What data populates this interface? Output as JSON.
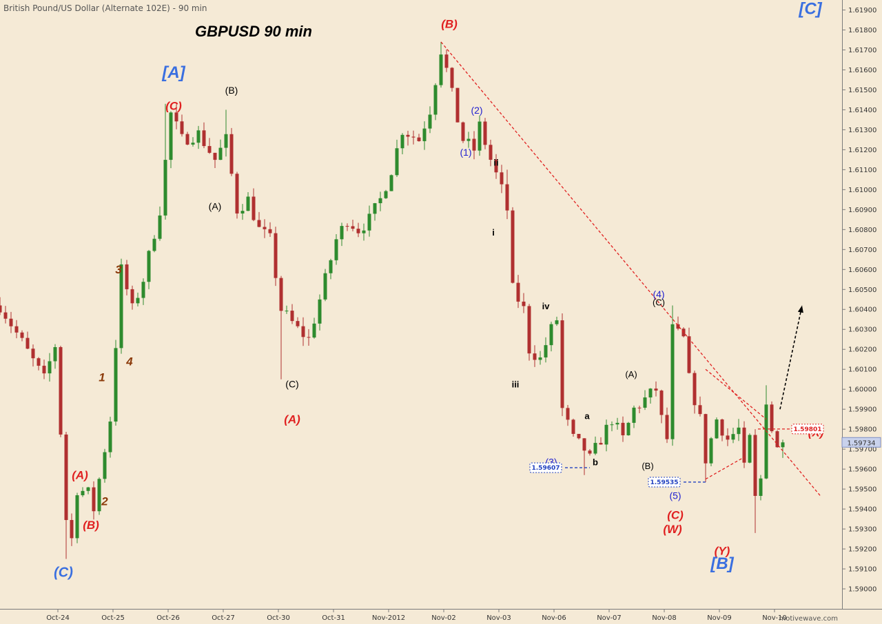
{
  "header": {
    "instrument": "British Pound/US Dollar (Alternate 102E) - 90 min",
    "title": "GBPUSD  90 min",
    "watermark": "motivewave.com"
  },
  "chart_data": {
    "type": "candlestick",
    "ylim": [
      1.589,
      1.6195
    ],
    "y_ticks": [
      {
        "value": 1.59,
        "label": "1.59000"
      },
      {
        "value": 1.591,
        "label": "1.59100"
      },
      {
        "value": 1.592,
        "label": "1.59200"
      },
      {
        "value": 1.593,
        "label": "1.59300"
      },
      {
        "value": 1.594,
        "label": "1.59400"
      },
      {
        "value": 1.595,
        "label": "1.59500"
      },
      {
        "value": 1.596,
        "label": "1.59600"
      },
      {
        "value": 1.597,
        "label": "1.59700"
      },
      {
        "value": 1.598,
        "label": "1.59800"
      },
      {
        "value": 1.599,
        "label": "1.59900"
      },
      {
        "value": 1.6,
        "label": "1.60000"
      },
      {
        "value": 1.601,
        "label": "1.60100"
      },
      {
        "value": 1.602,
        "label": "1.60200"
      },
      {
        "value": 1.603,
        "label": "1.60300"
      },
      {
        "value": 1.604,
        "label": "1.60400"
      },
      {
        "value": 1.605,
        "label": "1.60500"
      },
      {
        "value": 1.606,
        "label": "1.60600"
      },
      {
        "value": 1.607,
        "label": "1.60700"
      },
      {
        "value": 1.608,
        "label": "1.60800"
      },
      {
        "value": 1.609,
        "label": "1.60900"
      },
      {
        "value": 1.61,
        "label": "1.61000"
      },
      {
        "value": 1.611,
        "label": "1.61100"
      },
      {
        "value": 1.612,
        "label": "1.61200"
      },
      {
        "value": 1.613,
        "label": "1.61300"
      },
      {
        "value": 1.614,
        "label": "1.61400"
      },
      {
        "value": 1.615,
        "label": "1.61500"
      },
      {
        "value": 1.616,
        "label": "1.61600"
      },
      {
        "value": 1.617,
        "label": "1.61700"
      },
      {
        "value": 1.618,
        "label": "1.61800"
      },
      {
        "value": 1.619,
        "label": "1.61900"
      }
    ],
    "x_ticks": [
      {
        "t": 7.5,
        "label": "Oct-24"
      },
      {
        "t": 17.5,
        "label": "Oct-25"
      },
      {
        "t": 27.5,
        "label": "Oct-26"
      },
      {
        "t": 37.5,
        "label": "Oct-27"
      },
      {
        "t": 47.5,
        "label": "Oct-30"
      },
      {
        "t": 57.5,
        "label": "Oct-31"
      },
      {
        "t": 67.5,
        "label": "Nov-2012"
      },
      {
        "t": 77.5,
        "label": "Nov-02"
      },
      {
        "t": 87.5,
        "label": "Nov-03"
      },
      {
        "t": 97.5,
        "label": "Nov-06"
      },
      {
        "t": 107.5,
        "label": "Nov-07"
      },
      {
        "t": 117.5,
        "label": "Nov-08"
      },
      {
        "t": 127.5,
        "label": "Nov-09"
      },
      {
        "t": 137.5,
        "label": "Nov-10"
      }
    ],
    "xlim": [
      -3.0,
      147.0
    ],
    "up_color": "#2e8b2e",
    "down_color": "#b03030",
    "price_path": [
      [
        -3,
        1.6042
      ],
      [
        5,
        1.6005
      ],
      [
        7,
        1.6022
      ],
      [
        9,
        1.5935
      ],
      [
        10,
        1.5925
      ],
      [
        11,
        1.595
      ],
      [
        13,
        1.5948
      ],
      [
        14,
        1.594
      ],
      [
        17,
        1.5985
      ],
      [
        19,
        1.606
      ],
      [
        21,
        1.604
      ],
      [
        23,
        1.6055
      ],
      [
        26,
        1.609
      ],
      [
        28,
        1.6138
      ],
      [
        30,
        1.6125
      ],
      [
        33,
        1.6128
      ],
      [
        36,
        1.6115
      ],
      [
        38,
        1.6125
      ],
      [
        40,
        1.609
      ],
      [
        42,
        1.6095
      ],
      [
        44,
        1.608
      ],
      [
        46,
        1.6075
      ],
      [
        48,
        1.604
      ],
      [
        51,
        1.603
      ],
      [
        53,
        1.6025
      ],
      [
        56,
        1.6055
      ],
      [
        58,
        1.6075
      ],
      [
        60,
        1.6085
      ],
      [
        62,
        1.608
      ],
      [
        64,
        1.6085
      ],
      [
        66,
        1.6095
      ],
      [
        68,
        1.611
      ],
      [
        70,
        1.613
      ],
      [
        73,
        1.6125
      ],
      [
        75,
        1.614
      ],
      [
        77,
        1.617
      ],
      [
        78,
        1.616
      ],
      [
        80,
        1.6135
      ],
      [
        81,
        1.6125
      ],
      [
        83,
        1.612
      ],
      [
        84,
        1.6132
      ],
      [
        86,
        1.6115
      ],
      [
        88,
        1.61
      ],
      [
        89,
        1.609
      ],
      [
        90,
        1.605
      ],
      [
        92,
        1.604
      ],
      [
        93,
        1.602
      ],
      [
        95,
        1.6015
      ],
      [
        97,
        1.603
      ],
      [
        98,
        1.6035
      ],
      [
        99,
        1.599
      ],
      [
        101,
        1.5975
      ],
      [
        103,
        1.597
      ],
      [
        104,
        1.5965
      ],
      [
        106,
        1.5975
      ],
      [
        108,
        1.5985
      ],
      [
        110,
        1.5975
      ],
      [
        112,
        1.599
      ],
      [
        114,
        1.5995
      ],
      [
        116,
        1.6
      ],
      [
        117,
        1.5985
      ],
      [
        118,
        1.5975
      ],
      [
        119,
        1.603
      ],
      [
        121,
        1.6025
      ],
      [
        122,
        1.6005
      ],
      [
        124,
        1.5985
      ],
      [
        125,
        1.5965
      ],
      [
        127,
        1.5985
      ],
      [
        129,
        1.5975
      ],
      [
        131,
        1.598
      ],
      [
        132,
        1.596
      ],
      [
        133,
        1.5975
      ],
      [
        134,
        1.5945
      ],
      [
        135,
        1.5955
      ],
      [
        136,
        1.5995
      ],
      [
        137,
        1.598
      ],
      [
        138,
        1.597
      ],
      [
        139,
        1.5973
      ]
    ],
    "extremes": [
      [
        9,
        1.5915
      ],
      [
        27,
        1.6143
      ],
      [
        38,
        1.614
      ],
      [
        48,
        1.6005
      ],
      [
        77,
        1.6174
      ],
      [
        89,
        1.611
      ],
      [
        99,
        1.6038
      ],
      [
        103,
        1.5957
      ],
      [
        119,
        1.6042
      ],
      [
        125,
        1.59535
      ],
      [
        134,
        1.5928
      ],
      [
        136,
        1.6002
      ]
    ],
    "dashed_lines": [
      {
        "from": [
          77,
          1.6174
        ],
        "to": [
          146,
          1.5946
        ],
        "color": "#e02020"
      },
      {
        "from": [
          125,
          1.601
        ],
        "to": [
          136,
          1.5985
        ],
        "color": "#e02020"
      },
      {
        "from": [
          125,
          1.5955
        ],
        "to": [
          132,
          1.5966
        ],
        "color": "#e02020"
      },
      {
        "from": [
          99.5,
          1.59607
        ],
        "to": [
          104,
          1.59607
        ],
        "color": "#2040c0"
      },
      {
        "from": [
          121,
          1.59535
        ],
        "to": [
          125,
          1.59535
        ],
        "color": "#2040c0"
      },
      {
        "from": [
          134.5,
          1.59801
        ],
        "to": [
          140.5,
          1.59801
        ],
        "color": "#e02020"
      }
    ],
    "projection_arrow": {
      "from": [
        138.5,
        1.599
      ],
      "to": [
        142.5,
        1.6042
      ],
      "color": "#000000"
    },
    "price_badges": [
      {
        "label": "1.59607",
        "t": 96,
        "y": 1.59607,
        "color": "#2040c0"
      },
      {
        "label": "1.59535",
        "t": 117.5,
        "y": 1.59535,
        "color": "#2040c0"
      },
      {
        "label": "1.59801",
        "t": 143.5,
        "y": 1.59801,
        "color": "#e02020"
      }
    ],
    "current_price": {
      "label": "1.59734",
      "value": 1.59734
    },
    "annotations": [
      {
        "text": "[C]",
        "t": 144,
        "y": 1.6188,
        "color": "#3a6fe0",
        "size": 24,
        "style": "italic",
        "weight": "bold"
      },
      {
        "text": "(B)",
        "t": 78.5,
        "y": 1.6181,
        "color": "#e02020",
        "size": 17,
        "style": "italic",
        "weight": "bold"
      },
      {
        "text": "[A]",
        "t": 28.5,
        "y": 1.6156,
        "color": "#3a6fe0",
        "size": 24,
        "style": "italic",
        "weight": "bold"
      },
      {
        "text": "(C)",
        "t": 28.5,
        "y": 1.614,
        "color": "#e02020",
        "size": 17,
        "style": "italic",
        "weight": "bold"
      },
      {
        "text": "(B)",
        "t": 39,
        "y": 1.6148,
        "color": "#000000",
        "size": 14,
        "style": "normal",
        "weight": "normal"
      },
      {
        "text": "(A)",
        "t": 36,
        "y": 1.609,
        "color": "#000000",
        "size": 14,
        "style": "normal",
        "weight": "normal"
      },
      {
        "text": "(C)",
        "t": 50,
        "y": 1.6001,
        "color": "#000000",
        "size": 14,
        "style": "normal",
        "weight": "normal"
      },
      {
        "text": "(A)",
        "t": 50,
        "y": 1.5983,
        "color": "#e02020",
        "size": 17,
        "style": "italic",
        "weight": "bold"
      },
      {
        "text": "3",
        "t": 18.5,
        "y": 1.6058,
        "color": "#8b3a0a",
        "size": 17,
        "style": "italic",
        "weight": "bold"
      },
      {
        "text": "4",
        "t": 20.5,
        "y": 1.6012,
        "color": "#8b3a0a",
        "size": 17,
        "style": "italic",
        "weight": "bold"
      },
      {
        "text": "1",
        "t": 15.5,
        "y": 1.6004,
        "color": "#8b3a0a",
        "size": 17,
        "style": "italic",
        "weight": "bold"
      },
      {
        "text": "2",
        "t": 16,
        "y": 1.5942,
        "color": "#8b3a0a",
        "size": 17,
        "style": "italic",
        "weight": "bold"
      },
      {
        "text": "(A)",
        "t": 11.5,
        "y": 1.5955,
        "color": "#e02020",
        "size": 17,
        "style": "italic",
        "weight": "bold"
      },
      {
        "text": "(B)",
        "t": 13.5,
        "y": 1.593,
        "color": "#e02020",
        "size": 17,
        "style": "italic",
        "weight": "bold"
      },
      {
        "text": "(C)",
        "t": 8.5,
        "y": 1.5906,
        "color": "#3a6fe0",
        "size": 20,
        "style": "italic",
        "weight": "bold"
      },
      {
        "text": "(2)",
        "t": 83.5,
        "y": 1.6138,
        "color": "#1f1fd0",
        "size": 14,
        "style": "normal",
        "weight": "normal"
      },
      {
        "text": "(1)",
        "t": 81.5,
        "y": 1.6117,
        "color": "#1f1fd0",
        "size": 14,
        "style": "normal",
        "weight": "normal"
      },
      {
        "text": "ii",
        "t": 87,
        "y": 1.6112,
        "color": "#000000",
        "size": 13,
        "style": "normal",
        "weight": "bold"
      },
      {
        "text": "i",
        "t": 86.5,
        "y": 1.6077,
        "color": "#000000",
        "size": 13,
        "style": "normal",
        "weight": "bold"
      },
      {
        "text": "iv",
        "t": 96,
        "y": 1.604,
        "color": "#000000",
        "size": 13,
        "style": "normal",
        "weight": "bold"
      },
      {
        "text": "iii",
        "t": 90.5,
        "y": 1.6001,
        "color": "#000000",
        "size": 13,
        "style": "normal",
        "weight": "bold"
      },
      {
        "text": "a",
        "t": 103.5,
        "y": 1.5985,
        "color": "#000000",
        "size": 13,
        "style": "normal",
        "weight": "bold"
      },
      {
        "text": "b",
        "t": 105,
        "y": 1.5962,
        "color": "#000000",
        "size": 13,
        "style": "normal",
        "weight": "bold"
      },
      {
        "text": "(3)",
        "t": 97,
        "y": 1.5962,
        "color": "#1f1fd0",
        "size": 14,
        "style": "normal",
        "weight": "normal"
      },
      {
        "text": "(4)",
        "t": 116.5,
        "y": 1.6046,
        "color": "#1f1fd0",
        "size": 14,
        "style": "normal",
        "weight": "normal"
      },
      {
        "text": "(C)",
        "t": 116.5,
        "y": 1.6042,
        "color": "#000000",
        "size": 13,
        "style": "normal",
        "weight": "normal"
      },
      {
        "text": "(A)",
        "t": 111.5,
        "y": 1.6006,
        "color": "#000000",
        "size": 13,
        "style": "normal",
        "weight": "normal"
      },
      {
        "text": "(B)",
        "t": 114.5,
        "y": 1.596,
        "color": "#000000",
        "size": 13,
        "style": "normal",
        "weight": "normal"
      },
      {
        "text": "(5)",
        "t": 119.5,
        "y": 1.5945,
        "color": "#1f1fd0",
        "size": 14,
        "style": "normal",
        "weight": "normal"
      },
      {
        "text": "(C)",
        "t": 119.5,
        "y": 1.5935,
        "color": "#e02020",
        "size": 17,
        "style": "italic",
        "weight": "bold"
      },
      {
        "text": "(W)",
        "t": 119,
        "y": 1.5928,
        "color": "#e02020",
        "size": 17,
        "style": "italic",
        "weight": "bold"
      },
      {
        "text": "(X)",
        "t": 145,
        "y": 1.59765,
        "color": "#e02020",
        "size": 17,
        "style": "italic",
        "weight": "bold"
      },
      {
        "text": "(Y)",
        "t": 128,
        "y": 1.5917,
        "color": "#e02020",
        "size": 17,
        "style": "italic",
        "weight": "bold"
      },
      {
        "text": "[B]",
        "t": 128,
        "y": 1.591,
        "color": "#3a6fe0",
        "size": 24,
        "style": "italic",
        "weight": "bold"
      }
    ]
  }
}
